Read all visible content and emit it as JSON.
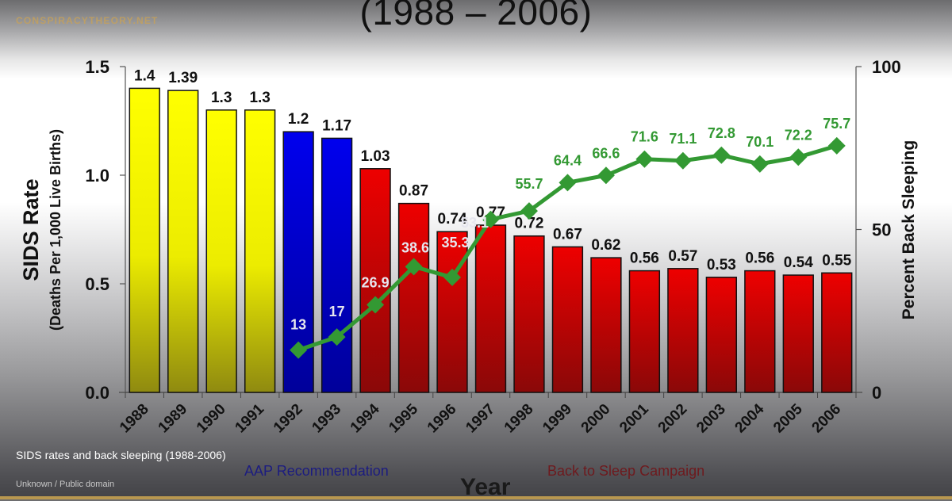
{
  "brand": "CONSPIRACYTHEORY.NET",
  "title": "(1988 – 2006)",
  "caption": "SIDS rates and back sleeping (1988-2006)",
  "credit": "Unknown / Public domain",
  "annotations": {
    "aap": "AAP Recommendation",
    "campaign": "Back to Sleep Campaign"
  },
  "colors": {
    "yellow": "#ffff00",
    "blue": "#0000e0",
    "red": "#e00000",
    "line": "#339933",
    "gold": "#b8974f"
  },
  "chart_data": {
    "type": "bar",
    "title": "(1988 – 2006)",
    "xlabel": "Year",
    "ylabel": "SIDS Rate",
    "ylabel_sub": "(Deaths Per 1,000 Live Births)",
    "y2label": "Percent Back Sleeping",
    "ylim": [
      0,
      1.5
    ],
    "y2lim": [
      0,
      100
    ],
    "yticks": [
      "0.0",
      "0.5",
      "1.0",
      "1.5"
    ],
    "y2ticks": [
      "0",
      "50",
      "100"
    ],
    "grid": false,
    "categories": [
      "1988",
      "1989",
      "1990",
      "1991",
      "1992",
      "1993",
      "1994",
      "1995",
      "1996",
      "1997",
      "1998",
      "1999",
      "2000",
      "2001",
      "2002",
      "2003",
      "2004",
      "2005",
      "2006"
    ],
    "series": [
      {
        "name": "SIDS Rate",
        "type": "bar",
        "axis": "left",
        "values": [
          1.4,
          1.39,
          1.3,
          1.3,
          1.2,
          1.17,
          1.03,
          0.87,
          0.74,
          0.77,
          0.72,
          0.67,
          0.62,
          0.56,
          0.57,
          0.53,
          0.56,
          0.54,
          0.55
        ],
        "labels": [
          "1.4",
          "1.39",
          "1.3",
          "1.3",
          "1.2",
          "1.17",
          "1.03",
          "0.87",
          "0.74",
          "0.77",
          "0.72",
          "0.67",
          "0.62",
          "0.56",
          "0.57",
          "0.53",
          "0.56",
          "0.54",
          "0.55"
        ],
        "color_groups": [
          "yellow",
          "yellow",
          "yellow",
          "yellow",
          "blue",
          "blue",
          "red",
          "red",
          "red",
          "red",
          "red",
          "red",
          "red",
          "red",
          "red",
          "red",
          "red",
          "red",
          "red"
        ]
      },
      {
        "name": "Percent Back Sleeping",
        "type": "line",
        "axis": "right",
        "values": [
          null,
          null,
          null,
          null,
          13,
          17,
          26.9,
          38.6,
          35.3,
          53.1,
          55.7,
          64.4,
          66.6,
          71.6,
          71.1,
          72.8,
          70.1,
          72.2,
          75.7
        ],
        "labels": [
          "",
          "",
          "",
          "",
          "13",
          "17",
          "26.9",
          "38.6",
          "35.3",
          "53.1",
          "55.7",
          "64.4",
          "66.6",
          "71.6",
          "71.1",
          "72.8",
          "70.1",
          "72.2",
          "75.7"
        ]
      }
    ],
    "annotations": [
      "AAP Recommendation",
      "Back to Sleep Campaign"
    ],
    "legend": null
  }
}
